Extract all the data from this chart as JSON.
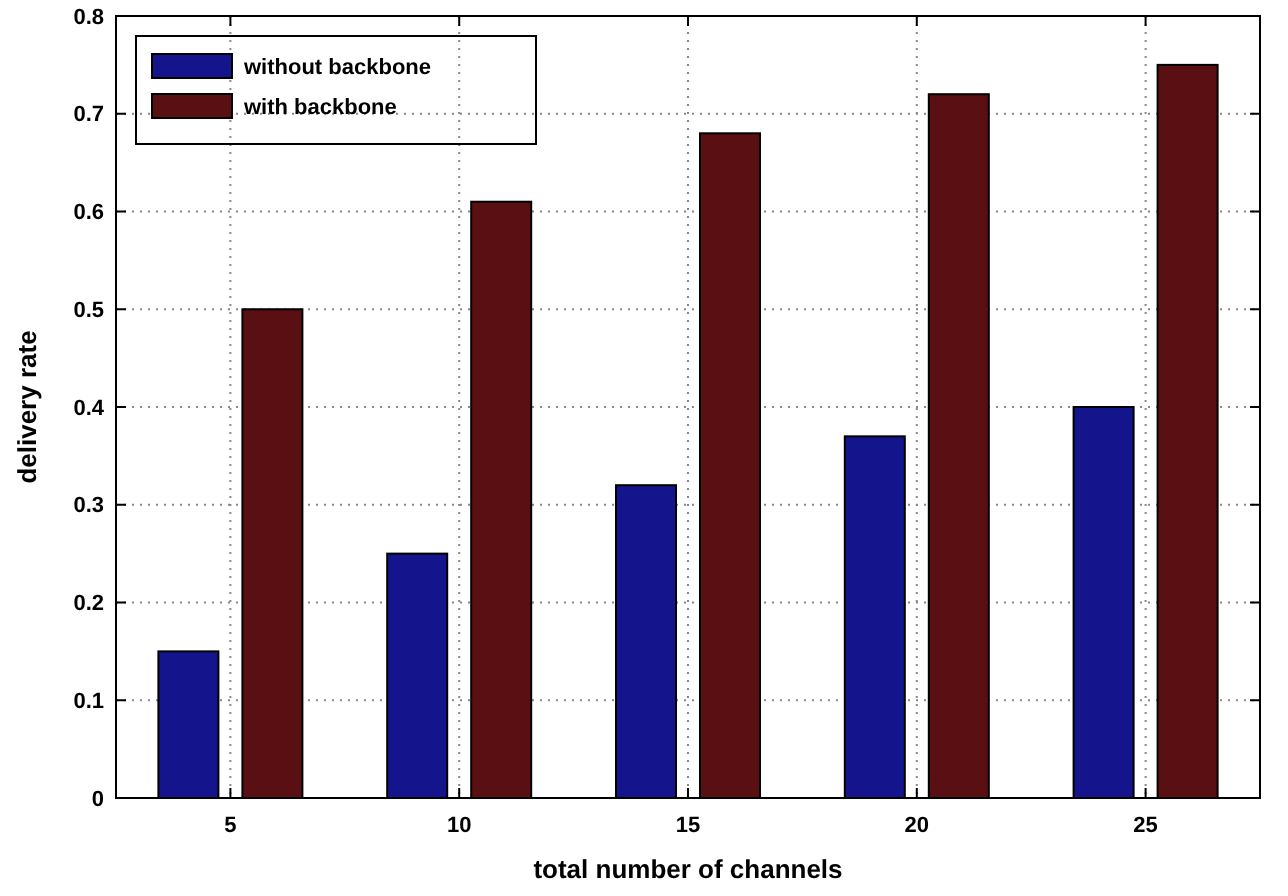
{
  "chart_data": {
    "type": "bar",
    "xlabel": "total number of channels",
    "ylabel": "delivery rate",
    "categories": [
      "5",
      "10",
      "15",
      "20",
      "25"
    ],
    "series": [
      {
        "name": "without backbone",
        "color": "#14148c",
        "values": [
          0.15,
          0.25,
          0.32,
          0.37,
          0.4
        ]
      },
      {
        "name": "with backbone",
        "color": "#5a0f12",
        "values": [
          0.5,
          0.61,
          0.68,
          0.72,
          0.75
        ]
      }
    ],
    "ylim": [
      0,
      0.8
    ],
    "yticks": [
      0,
      0.1,
      0.2,
      0.3,
      0.4,
      0.5,
      0.6,
      0.7,
      0.8
    ],
    "grid": true,
    "legend": "top left"
  }
}
